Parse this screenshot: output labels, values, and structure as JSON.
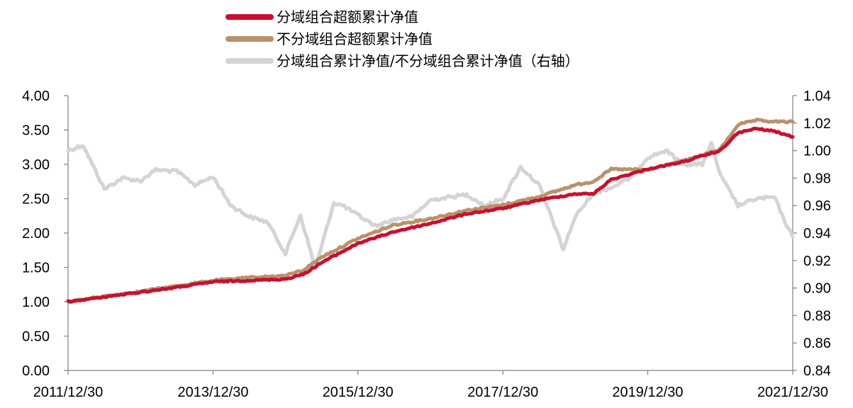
{
  "chart_data": {
    "type": "line",
    "title": "",
    "xlabel": "",
    "ylabel": "",
    "y2label": "",
    "x_ticks": [
      "2011/12/30",
      "2013/12/30",
      "2015/12/30",
      "2017/12/30",
      "2019/12/30",
      "2021/12/30"
    ],
    "x_range": [
      "2011/12/30",
      "2021/12/30"
    ],
    "ylim": [
      0,
      4
    ],
    "y_ticks": [
      "0.00",
      "0.50",
      "1.00",
      "1.50",
      "2.00",
      "2.50",
      "3.00",
      "3.50",
      "4.00"
    ],
    "y2lim": [
      0.84,
      1.04
    ],
    "y2_ticks": [
      "0.84",
      "0.86",
      "0.88",
      "0.90",
      "0.92",
      "0.94",
      "0.96",
      "0.98",
      "1.00",
      "1.02",
      "1.04"
    ],
    "grid": false,
    "legend_position": "top-center",
    "series": [
      {
        "name": "分域组合超额累计净值",
        "axis": "left",
        "color": "#c8102e",
        "x": [
          "2011/12/30",
          "2012/06/30",
          "2012/12/30",
          "2013/06/30",
          "2013/12/30",
          "2014/06/30",
          "2014/12/30",
          "2015/03/30",
          "2015/06/30",
          "2015/12/30",
          "2016/06/30",
          "2016/12/30",
          "2017/06/30",
          "2017/12/30",
          "2018/06/30",
          "2018/12/30",
          "2019/03/30",
          "2019/06/30",
          "2019/12/30",
          "2020/06/30",
          "2020/12/30",
          "2021/03/30",
          "2021/06/30",
          "2021/09/30",
          "2021/12/30"
        ],
        "values": [
          1.0,
          1.07,
          1.14,
          1.21,
          1.29,
          1.31,
          1.33,
          1.4,
          1.57,
          1.85,
          2.02,
          2.14,
          2.28,
          2.36,
          2.48,
          2.57,
          2.57,
          2.78,
          2.93,
          3.04,
          3.2,
          3.46,
          3.52,
          3.48,
          3.4
        ]
      },
      {
        "name": "不分域组合超额累计净值",
        "axis": "left",
        "color": "#b9916c",
        "x": [
          "2011/12/30",
          "2012/06/30",
          "2012/12/30",
          "2013/06/30",
          "2013/12/30",
          "2014/06/30",
          "2014/12/30",
          "2015/03/30",
          "2015/06/30",
          "2015/12/30",
          "2016/06/30",
          "2016/12/30",
          "2017/06/30",
          "2017/12/30",
          "2018/06/30",
          "2018/12/30",
          "2019/03/30",
          "2019/06/30",
          "2019/12/30",
          "2020/06/30",
          "2020/12/30",
          "2021/03/30",
          "2021/06/30",
          "2021/09/30",
          "2021/12/30"
        ],
        "values": [
          1.0,
          1.08,
          1.15,
          1.23,
          1.31,
          1.35,
          1.38,
          1.46,
          1.65,
          1.92,
          2.12,
          2.21,
          2.33,
          2.41,
          2.53,
          2.7,
          2.75,
          2.93,
          2.92,
          3.05,
          3.22,
          3.58,
          3.64,
          3.62,
          3.62
        ]
      },
      {
        "name": "分域组合累计净值/不分域组合累计净值（右轴）",
        "axis": "right",
        "color": "#d4d4d4",
        "x": [
          "2011/12/30",
          "2012/03/15",
          "2012/06/30",
          "2012/09/30",
          "2012/12/30",
          "2013/03/15",
          "2013/06/30",
          "2013/09/30",
          "2013/12/30",
          "2014/03/30",
          "2014/06/30",
          "2014/09/30",
          "2014/12/30",
          "2015/03/15",
          "2015/05/30",
          "2015/08/30",
          "2015/10/15",
          "2015/12/30",
          "2016/03/30",
          "2016/06/30",
          "2016/09/30",
          "2016/12/30",
          "2017/03/30",
          "2017/06/30",
          "2017/09/30",
          "2017/12/30",
          "2018/03/30",
          "2018/06/30",
          "2018/08/30",
          "2018/10/30",
          "2018/12/30",
          "2019/03/30",
          "2019/06/30",
          "2019/09/30",
          "2019/12/30",
          "2020/03/30",
          "2020/06/30",
          "2020/09/30",
          "2020/11/15",
          "2020/12/30",
          "2021/03/30",
          "2021/06/30",
          "2021/09/30",
          "2021/11/15",
          "2021/12/30"
        ],
        "values": [
          1.0,
          1.004,
          0.972,
          0.98,
          0.978,
          0.986,
          0.985,
          0.975,
          0.981,
          0.96,
          0.952,
          0.948,
          0.925,
          0.953,
          0.914,
          0.962,
          0.96,
          0.953,
          0.945,
          0.95,
          0.952,
          0.964,
          0.966,
          0.968,
          0.96,
          0.965,
          0.988,
          0.975,
          0.952,
          0.928,
          0.952,
          0.969,
          0.973,
          0.98,
          0.995,
          1.0,
          0.99,
          0.99,
          1.005,
          0.982,
          0.96,
          0.965,
          0.966,
          0.95,
          0.937
        ]
      }
    ]
  },
  "legend": {
    "items": [
      {
        "label": "分域组合超额累计净值",
        "color": "#c8102e"
      },
      {
        "label": "不分域组合超额累计净值",
        "color": "#b9916c"
      },
      {
        "label": "分域组合累计净值/不分域组合累计净值（右轴）",
        "color": "#d4d4d4"
      }
    ]
  }
}
